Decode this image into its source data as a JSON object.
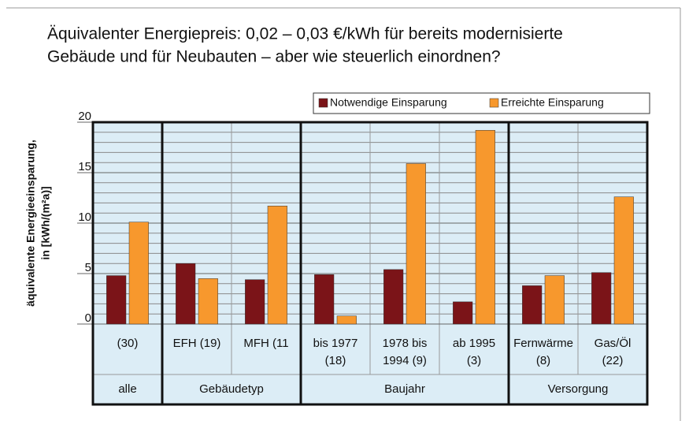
{
  "chart_data": {
    "type": "bar",
    "title": [
      "Äquivalenter Energiepreis: 0,02 – 0,03 €/kWh für bereits modernisierte",
      "Gebäude und für Neubauten – aber wie steuerlich einordnen?"
    ],
    "y_label": [
      "äquivalente Energieeinsparung,",
      "in [kWh/(m²a)]"
    ],
    "categories": [
      [
        "(30)"
      ],
      [
        "EFH (19)"
      ],
      [
        "MFH (11"
      ],
      [
        "bis 1977",
        "(18)"
      ],
      [
        "1978 bis",
        "1994 (9)"
      ],
      [
        "ab 1995",
        "(3)"
      ],
      [
        "Fernwärme",
        "(8)"
      ],
      [
        "Gas/Öl",
        "(22)"
      ]
    ],
    "groups": [
      {
        "label": "alle",
        "size": 1
      },
      {
        "label": "Gebäudetyp",
        "size": 2
      },
      {
        "label": "Baujahr",
        "size": 3
      },
      {
        "label": "Versorgung",
        "size": 2
      }
    ],
    "series": [
      {
        "name": "Notwendige Einsparung",
        "color": "#7b1418",
        "values": [
          4.8,
          6.0,
          4.4,
          4.9,
          5.4,
          2.2,
          3.8,
          5.1
        ]
      },
      {
        "name": "Erreichte Einsparung",
        "color": "#f7982d",
        "values": [
          10.1,
          4.5,
          11.7,
          0.8,
          15.9,
          19.2,
          4.8,
          12.6
        ]
      }
    ],
    "ylim": [
      0,
      20
    ],
    "yticks": [
      0,
      5,
      10,
      15,
      20
    ],
    "grid": true
  }
}
